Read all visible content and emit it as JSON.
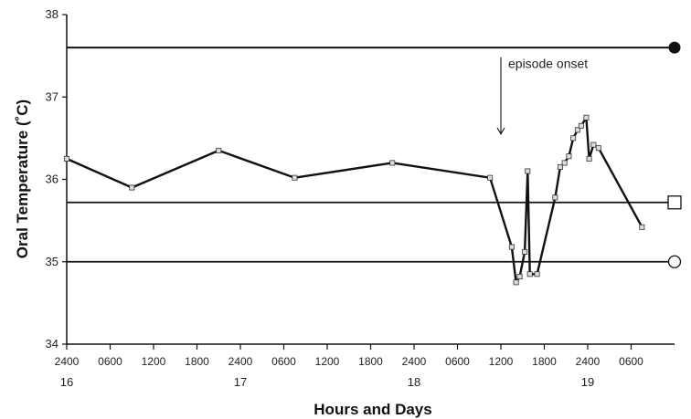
{
  "chart_data": {
    "type": "line",
    "title": "",
    "xlabel": "Hours and Days",
    "ylabel": "Oral Temperature (˚C)",
    "ylim": [
      34,
      38
    ],
    "yticks": [
      "34",
      "35",
      "36",
      "37",
      "38"
    ],
    "xlim_hours": [
      0,
      84
    ],
    "x_unit": "hours from 2400 on day 16",
    "hour_ticks": [
      {
        "x": 0,
        "label": "2400"
      },
      {
        "x": 6,
        "label": "0600"
      },
      {
        "x": 12,
        "label": "1200"
      },
      {
        "x": 18,
        "label": "1800"
      },
      {
        "x": 24,
        "label": "2400"
      },
      {
        "x": 30,
        "label": "0600"
      },
      {
        "x": 36,
        "label": "1200"
      },
      {
        "x": 42,
        "label": "1800"
      },
      {
        "x": 48,
        "label": "2400"
      },
      {
        "x": 54,
        "label": "0600"
      },
      {
        "x": 60,
        "label": "1200"
      },
      {
        "x": 66,
        "label": "1800"
      },
      {
        "x": 72,
        "label": "2400"
      },
      {
        "x": 78,
        "label": "0600"
      }
    ],
    "day_ticks": [
      {
        "x": 0,
        "label": "16"
      },
      {
        "x": 24,
        "label": "17"
      },
      {
        "x": 48,
        "label": "18"
      },
      {
        "x": 72,
        "label": "19"
      }
    ],
    "reference_lines": [
      {
        "y": 37.6,
        "marker": "filled-circle"
      },
      {
        "y": 35.72,
        "marker": "open-square"
      },
      {
        "y": 35.0,
        "marker": "open-circle"
      }
    ],
    "annotations": [
      {
        "text": "episode onset",
        "x": 60,
        "y": 37.35
      }
    ],
    "series": [
      {
        "marker": "small-square",
        "points": [
          [
            0,
            36.25
          ],
          [
            9,
            35.9
          ],
          [
            21,
            36.35
          ],
          [
            31.5,
            36.02
          ],
          [
            45,
            36.2
          ],
          [
            58.5,
            36.02
          ],
          [
            61.5,
            35.18
          ],
          [
            62.1,
            34.75
          ],
          [
            62.6,
            34.82
          ],
          [
            63.3,
            35.12
          ],
          [
            63.7,
            36.1
          ],
          [
            64,
            34.85
          ],
          [
            65,
            34.85
          ],
          [
            67.5,
            35.78
          ],
          [
            68.2,
            36.15
          ],
          [
            68.8,
            36.2
          ],
          [
            69.4,
            36.28
          ],
          [
            70,
            36.5
          ],
          [
            70.6,
            36.6
          ],
          [
            71.1,
            36.65
          ],
          [
            71.8,
            36.75
          ],
          [
            72.2,
            36.25
          ],
          [
            72.8,
            36.42
          ],
          [
            73.5,
            36.38
          ],
          [
            79.5,
            35.42
          ]
        ]
      }
    ]
  }
}
